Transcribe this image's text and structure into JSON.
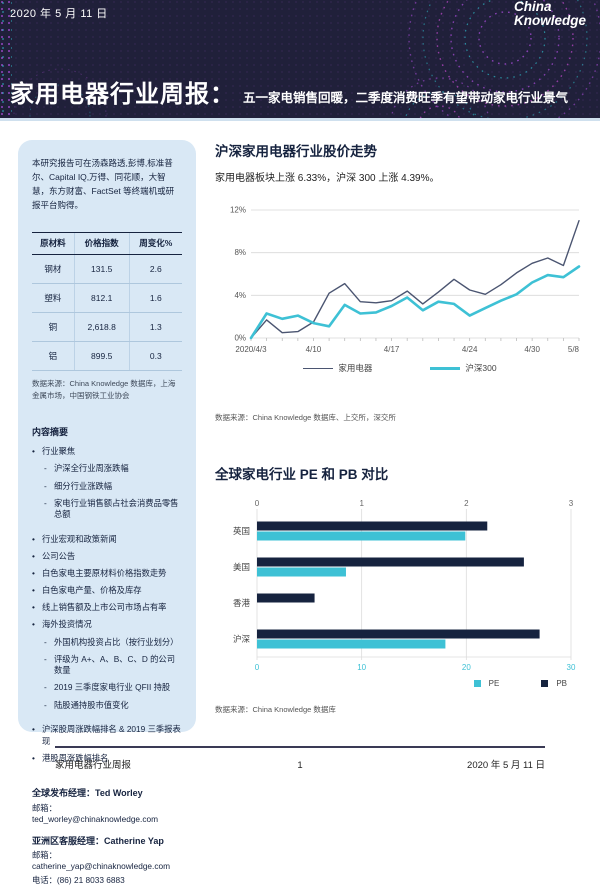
{
  "header": {
    "date": "2020 年 5 月 11 日",
    "logo_line1": "China",
    "logo_line2": "Knowledge",
    "title": "家用电器行业周报：",
    "subtitle": "五一家电销售回暖，二季度消费旺季有望带动家电行业景气"
  },
  "sidebar": {
    "availability_note": "本研究报告可在汤森路透,彭博,标准普尔、Capital IQ,万得、同花顺，大智慧，东方财富、FactSet 等终端机或研报平台购得。",
    "materials_table": {
      "headers": [
        "原材料",
        "价格指数",
        "周变化%"
      ],
      "rows": [
        [
          "钢材",
          "131.5",
          "2.6"
        ],
        [
          "塑料",
          "812.1",
          "1.6"
        ],
        [
          "铜",
          "2,618.8",
          "1.3"
        ],
        [
          "铝",
          "899.5",
          "0.3"
        ]
      ],
      "source": "数据来源：China Knowledge 数据库，上海金属市场，中国钢铁工业协会"
    },
    "summary": {
      "heading": "内容摘要",
      "items": [
        {
          "text": "行业聚焦",
          "cls": "l1"
        },
        {
          "text": "沪深全行业周涨跌幅",
          "cls": "l2"
        },
        {
          "text": "细分行业涨跌幅",
          "cls": "l2"
        },
        {
          "text": "家电行业销售额占社会消费品零售总额",
          "cls": "l2"
        },
        {
          "text": "行业宏观和政策新闻",
          "cls": "l1 gap"
        },
        {
          "text": "公司公告",
          "cls": "l1"
        },
        {
          "text": "白色家电主要原材料价格指数走势",
          "cls": "l1"
        },
        {
          "text": "白色家电产量、价格及库存",
          "cls": "l1"
        },
        {
          "text": "线上销售额及上市公司市场占有率",
          "cls": "l1"
        },
        {
          "text": "海外投资情况",
          "cls": "l1"
        },
        {
          "text": "外国机构投资占比（按行业划分）",
          "cls": "l2"
        },
        {
          "text": "评级为 A+、A、B、C、D 的公司数量",
          "cls": "l2"
        },
        {
          "text": "2019 三季度家电行业 QFII 持股",
          "cls": "l2"
        },
        {
          "text": "陆股通持股市值变化",
          "cls": "l2"
        },
        {
          "text": "沪深股周涨跌幅排名 & 2019 三季报表现",
          "cls": "l1 gap"
        },
        {
          "text": "港股周涨跌幅排名",
          "cls": "l1"
        }
      ]
    },
    "contacts": [
      {
        "text": "全球发布经理：Ted Worley",
        "cls": "role"
      },
      {
        "text": "邮箱：ted_worley@chinaknowledge.com",
        "cls": "detail"
      },
      {
        "text": "亚洲区客服经理：Catherine Yap",
        "cls": "role"
      },
      {
        "text": "邮箱：catherine_yap@chinaknowledge.com",
        "cls": "detail"
      },
      {
        "text": "电话：(86) 21 8033 6883",
        "cls": "detail"
      }
    ]
  },
  "main": {
    "section1": {
      "title": "沪深家用电器行业股价走势",
      "subtitle": "家用电器板块上涨 6.33%，沪深 300 上涨 4.39%。",
      "source": "数据来源：China Knowledge 数据库、上交所，深交所"
    },
    "section2": {
      "title": "全球家电行业 PE 和 PB 对比",
      "source": "数据来源：China Knowledge 数据库"
    }
  },
  "footer": {
    "left": "家用电器行业周报",
    "page": "1",
    "right": "2020 年 5 月 11 日"
  },
  "colors": {
    "header_bg": "#20203a",
    "sidebar_bg": "#d9e8f5",
    "dark_navy": "#16233f",
    "series_dark": "#4b5571",
    "series_teal": "#3ec1d5",
    "deco_purple": "#a44bd4",
    "deco_teal": "#2fb9c9"
  },
  "chart_data": [
    {
      "type": "line",
      "title": "沪深家用电器行业股价走势",
      "x": [
        "2020/4/3",
        "4/7",
        "4/8",
        "4/9",
        "4/10",
        "4/13",
        "4/14",
        "4/15",
        "4/16",
        "4/17",
        "4/20",
        "4/21",
        "4/22",
        "4/23",
        "4/24",
        "4/27",
        "4/28",
        "4/29",
        "4/30",
        "5/6",
        "5/7",
        "5/8"
      ],
      "x_tick_labels": [
        "2020/4/3",
        "4/10",
        "4/17",
        "4/24",
        "4/30",
        "5/8"
      ],
      "x_tick_indices": [
        0,
        4,
        9,
        14,
        18,
        21
      ],
      "series": [
        {
          "name": "家用电器",
          "color": "#4b5571",
          "values": [
            0,
            1.7,
            0.5,
            0.6,
            1.5,
            4.2,
            5.1,
            3.4,
            3.3,
            3.5,
            4.4,
            3.2,
            4.3,
            5.5,
            4.5,
            4.1,
            5.0,
            6.1,
            7.0,
            7.5,
            6.8,
            11.0
          ]
        },
        {
          "name": "沪深300",
          "color": "#3ec1d5",
          "values": [
            0,
            2.3,
            1.8,
            2.1,
            1.4,
            1.1,
            3.1,
            2.3,
            2.4,
            3.0,
            3.8,
            2.6,
            3.4,
            3.2,
            2.1,
            2.8,
            3.5,
            4.1,
            5.2,
            5.9,
            5.7,
            6.7
          ]
        }
      ],
      "ylim": [
        0,
        12
      ],
      "y_ticks": [
        "0%",
        "4%",
        "8%",
        "12%"
      ],
      "grid": true,
      "legend_position": "bottom"
    },
    {
      "type": "bar",
      "orientation": "horizontal",
      "title": "全球家电行业 PE 和 PB 对比",
      "categories": [
        "英国",
        "美国",
        "香港",
        "沪深"
      ],
      "series": [
        {
          "name": "PB",
          "axis": "top",
          "color": "#16233f",
          "values": [
            2.2,
            2.55,
            0.55,
            2.7
          ]
        },
        {
          "name": "PE",
          "axis": "bottom",
          "color": "#3ec1d5",
          "values": [
            19.9,
            8.5,
            0,
            18.0
          ]
        }
      ],
      "top_axis": {
        "ticks": [
          0,
          1,
          2,
          3
        ],
        "max": 3
      },
      "bottom_axis": {
        "ticks": [
          0,
          10,
          20,
          30
        ],
        "max": 30
      },
      "legend": [
        "PE",
        "PB"
      ],
      "legend_position": "bottom-right"
    }
  ]
}
